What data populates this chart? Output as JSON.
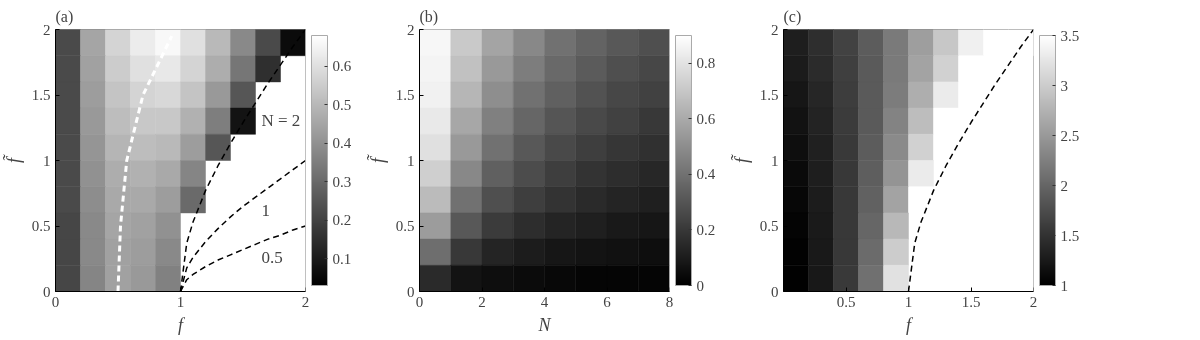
{
  "chart_data": [
    {
      "type": "heatmap",
      "title": "(a)",
      "xlabel": "f",
      "ylabel": "f̃",
      "xlim": [
        0,
        2
      ],
      "ylim": [
        0,
        2
      ],
      "xticks": [
        0,
        1,
        2
      ],
      "yticks": [
        0,
        0.5,
        1,
        1.5,
        2
      ],
      "clim": [
        0.03,
        0.68
      ],
      "cticks": [
        0.1,
        0.2,
        0.3,
        0.4,
        0.5,
        0.6
      ],
      "cells": [
        [
          0.22,
          0.45,
          0.57,
          0.63,
          0.66,
          0.6,
          0.5,
          0.38,
          0.22,
          0.06
        ],
        [
          0.22,
          0.44,
          0.55,
          0.6,
          0.62,
          0.57,
          0.47,
          0.33,
          0.15,
          null
        ],
        [
          0.22,
          0.43,
          0.53,
          0.57,
          0.58,
          0.53,
          0.42,
          0.25,
          null,
          null
        ],
        [
          0.22,
          0.42,
          0.51,
          0.54,
          0.54,
          0.48,
          0.35,
          0.08,
          null,
          null
        ],
        [
          0.22,
          0.41,
          0.49,
          0.51,
          0.5,
          0.43,
          0.25,
          null,
          null,
          null
        ],
        [
          0.22,
          0.4,
          0.47,
          0.48,
          0.46,
          0.37,
          null,
          null,
          null,
          null
        ],
        [
          0.22,
          0.39,
          0.46,
          0.46,
          0.43,
          0.3,
          null,
          null,
          null,
          null
        ],
        [
          0.21,
          0.38,
          0.45,
          0.44,
          0.4,
          null,
          null,
          null,
          null,
          null
        ],
        [
          0.21,
          0.38,
          0.44,
          0.43,
          0.38,
          null,
          null,
          null,
          null,
          null
        ],
        [
          0.21,
          0.37,
          0.44,
          0.42,
          0.36,
          null,
          null,
          null,
          null,
          null
        ]
      ],
      "series": [
        {
          "type": "line",
          "color": "#000000",
          "line_style": "dashed",
          "x": [
            1,
            1.05,
            1.1,
            1.2,
            1.3,
            1.4,
            1.5,
            1.6,
            1.7,
            1.8,
            1.9,
            2
          ],
          "values": [
            0,
            0.37,
            0.53,
            0.77,
            0.96,
            1.13,
            1.29,
            1.44,
            1.59,
            1.73,
            1.87,
            2
          ]
        },
        {
          "type": "line",
          "color": "#000000",
          "line_style": "dashed",
          "x": [
            1,
            1.05,
            1.1,
            1.2,
            1.3,
            1.4,
            1.5,
            1.6,
            1.7,
            1.8,
            1.9,
            2
          ],
          "values": [
            0,
            0.18,
            0.26,
            0.38,
            0.48,
            0.57,
            0.65,
            0.72,
            0.79,
            0.86,
            0.93,
            1
          ]
        },
        {
          "type": "line",
          "color": "#000000",
          "line_style": "dashed",
          "x": [
            1,
            1.05,
            1.1,
            1.2,
            1.3,
            1.4,
            1.5,
            1.6,
            1.7,
            1.8,
            1.9,
            2
          ],
          "values": [
            0,
            0.09,
            0.13,
            0.19,
            0.24,
            0.28,
            0.32,
            0.36,
            0.4,
            0.43,
            0.47,
            0.5
          ]
        },
        {
          "type": "line",
          "color": "#ffffff",
          "line_style": "dashed",
          "x": [
            0.5,
            0.52,
            0.57,
            0.7,
            0.93
          ],
          "values": [
            0,
            0.5,
            1,
            1.5,
            1.95
          ]
        }
      ],
      "annotations": [
        "N = 2",
        "1",
        "0.5"
      ]
    },
    {
      "type": "heatmap",
      "title": "(b)",
      "xlabel": "N",
      "ylabel": "f̃",
      "xlim": [
        0,
        8
      ],
      "ylim": [
        0,
        2
      ],
      "xticks": [
        0,
        2,
        4,
        6,
        8
      ],
      "yticks": [
        0,
        0.5,
        1,
        1.5,
        2
      ],
      "clim": [
        0,
        0.9
      ],
      "cticks": [
        0,
        0.2,
        0.4,
        0.6,
        0.8
      ],
      "cells": [
        [
          0.87,
          0.71,
          0.58,
          0.48,
          0.4,
          0.35,
          0.31,
          0.28
        ],
        [
          0.86,
          0.68,
          0.54,
          0.44,
          0.37,
          0.32,
          0.28,
          0.25
        ],
        [
          0.85,
          0.64,
          0.5,
          0.4,
          0.34,
          0.29,
          0.25,
          0.23
        ],
        [
          0.82,
          0.59,
          0.45,
          0.36,
          0.3,
          0.26,
          0.23,
          0.2
        ],
        [
          0.79,
          0.54,
          0.4,
          0.31,
          0.26,
          0.22,
          0.19,
          0.17
        ],
        [
          0.73,
          0.48,
          0.34,
          0.27,
          0.22,
          0.18,
          0.16,
          0.14
        ],
        [
          0.66,
          0.4,
          0.28,
          0.22,
          0.18,
          0.15,
          0.13,
          0.11
        ],
        [
          0.55,
          0.31,
          0.21,
          0.16,
          0.13,
          0.11,
          0.09,
          0.08
        ],
        [
          0.39,
          0.2,
          0.13,
          0.1,
          0.08,
          0.07,
          0.06,
          0.05
        ],
        [
          0.15,
          0.07,
          0.05,
          0.04,
          0.03,
          0.02,
          0.02,
          0.02
        ]
      ]
    },
    {
      "type": "heatmap",
      "title": "(c)",
      "xlabel": "f",
      "ylabel": "f̃",
      "xlim": [
        0,
        2
      ],
      "ylim": [
        0,
        2
      ],
      "xticks": [
        0.5,
        1,
        1.5,
        2
      ],
      "yticks": [
        0,
        0.5,
        1,
        1.5,
        2
      ],
      "clim": [
        1,
        3.5
      ],
      "cticks": [
        1,
        1.5,
        2,
        2.5,
        3,
        3.5
      ],
      "cells": [
        [
          1.3,
          1.45,
          1.65,
          1.9,
          2.2,
          2.55,
          2.95,
          3.35,
          3.5,
          3.5
        ],
        [
          1.27,
          1.42,
          1.62,
          1.88,
          2.2,
          2.6,
          3.05,
          3.5,
          3.5,
          null
        ],
        [
          1.22,
          1.38,
          1.6,
          1.88,
          2.22,
          2.7,
          3.3,
          3.5,
          null,
          null
        ],
        [
          1.18,
          1.35,
          1.58,
          1.88,
          2.28,
          2.85,
          3.5,
          3.5,
          null,
          null
        ],
        [
          1.14,
          1.32,
          1.56,
          1.9,
          2.35,
          3.05,
          3.5,
          null,
          null,
          null
        ],
        [
          1.1,
          1.3,
          1.55,
          1.92,
          2.45,
          3.3,
          null,
          null,
          null,
          null
        ],
        [
          1.07,
          1.28,
          1.55,
          1.95,
          2.6,
          3.5,
          null,
          null,
          null,
          null
        ],
        [
          1.04,
          1.26,
          1.55,
          2.0,
          2.8,
          null,
          null,
          null,
          null,
          null
        ],
        [
          1.02,
          1.25,
          1.55,
          2.05,
          3.0,
          null,
          null,
          null,
          null,
          null
        ],
        [
          1.01,
          1.24,
          1.56,
          2.1,
          3.2,
          null,
          null,
          null,
          null,
          null
        ]
      ],
      "series": [
        {
          "type": "line",
          "color": "#000000",
          "line_style": "dashed",
          "x": [
            1,
            1.05,
            1.1,
            1.2,
            1.3,
            1.4,
            1.5,
            1.6,
            1.7,
            1.8,
            1.9,
            2
          ],
          "values": [
            0,
            0.37,
            0.53,
            0.77,
            0.96,
            1.13,
            1.29,
            1.44,
            1.59,
            1.73,
            1.87,
            2
          ]
        }
      ]
    }
  ]
}
